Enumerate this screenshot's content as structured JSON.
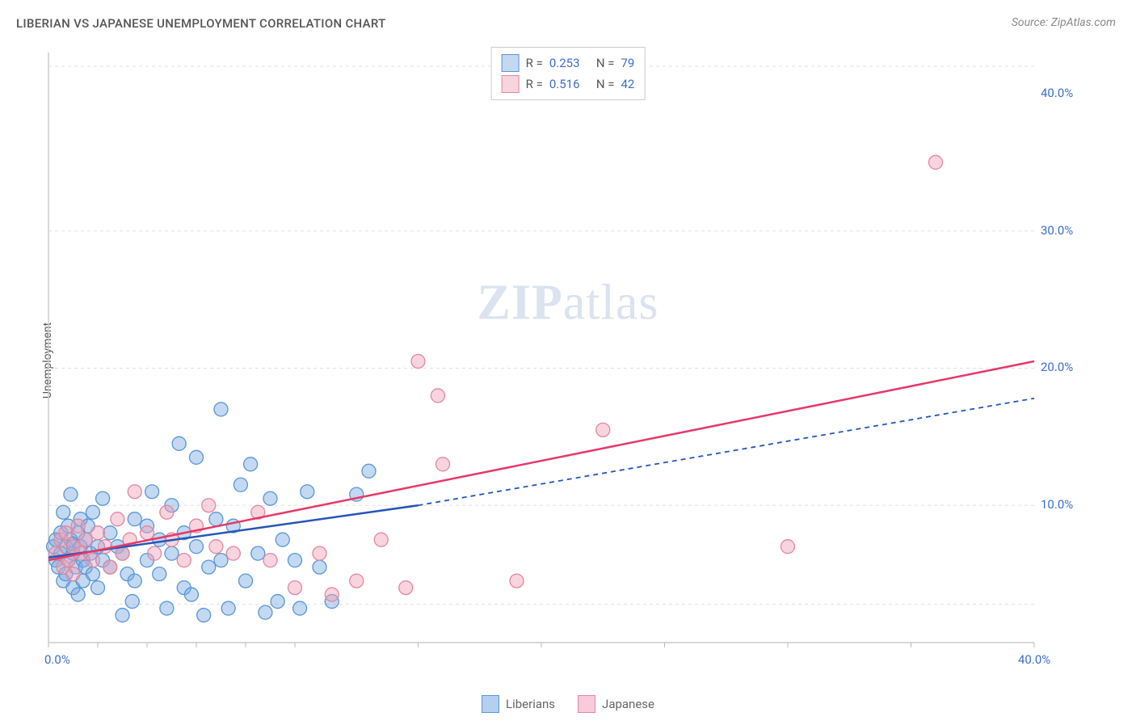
{
  "chart": {
    "type": "scatter",
    "title": "LIBERIAN VS JAPANESE UNEMPLOYMENT CORRELATION CHART",
    "source_label": "Source: ZipAtlas.com",
    "y_axis_label": "Unemployment",
    "background_color": "#ffffff",
    "grid_color": "#e0e0e0",
    "axis_color": "#cccccc",
    "tick_mark_color": "#bbbbbb",
    "xlim": [
      0,
      40
    ],
    "ylim": [
      0,
      43
    ],
    "x_ticks": [
      {
        "value": 0,
        "label": "0.0%"
      },
      {
        "value": 40,
        "label": "40.0%"
      }
    ],
    "x_minor_ticks": [
      2,
      4,
      6,
      8,
      10,
      15,
      20,
      25,
      30,
      35
    ],
    "y_ticks": [
      {
        "value": 10,
        "label": "10.0%"
      },
      {
        "value": 20,
        "label": "20.0%"
      },
      {
        "value": 30,
        "label": "30.0%"
      },
      {
        "value": 40,
        "label": "40.0%"
      }
    ],
    "y_grid_lines": [
      2.8,
      10,
      20,
      30,
      42
    ],
    "tick_label_color": "#3b6fc9",
    "watermark": {
      "zip": "ZIP",
      "atlas": "atlas"
    },
    "series": [
      {
        "name": "Liberians",
        "marker_fill": "rgba(120, 170, 225, 0.45)",
        "marker_stroke": "#5a96d6",
        "marker_radius": 8.5,
        "trend_color": "#2556b8",
        "trend_solid": {
          "x1": 0,
          "y1": 6.2,
          "x2": 15,
          "y2": 10.0
        },
        "trend_dash": {
          "x1": 15,
          "y1": 10.0,
          "x2": 40,
          "y2": 17.8
        },
        "r_value": "0.253",
        "n_value": "79",
        "points": [
          [
            0.2,
            7.0
          ],
          [
            0.3,
            6.0
          ],
          [
            0.3,
            7.5
          ],
          [
            0.4,
            5.5
          ],
          [
            0.5,
            8.0
          ],
          [
            0.5,
            6.5
          ],
          [
            0.6,
            4.5
          ],
          [
            0.6,
            9.5
          ],
          [
            0.7,
            7.0
          ],
          [
            0.7,
            5.0
          ],
          [
            0.8,
            6.0
          ],
          [
            0.8,
            8.5
          ],
          [
            0.9,
            7.5
          ],
          [
            0.9,
            10.8
          ],
          [
            1.0,
            4.0
          ],
          [
            1.0,
            6.5
          ],
          [
            1.0,
            7.2
          ],
          [
            1.1,
            5.5
          ],
          [
            1.2,
            8.0
          ],
          [
            1.2,
            3.5
          ],
          [
            1.3,
            7.0
          ],
          [
            1.3,
            9.0
          ],
          [
            1.4,
            6.0
          ],
          [
            1.4,
            4.5
          ],
          [
            1.5,
            5.5
          ],
          [
            1.5,
            7.5
          ],
          [
            1.6,
            8.5
          ],
          [
            1.7,
            6.5
          ],
          [
            1.8,
            9.5
          ],
          [
            1.8,
            5.0
          ],
          [
            2.0,
            7.0
          ],
          [
            2.0,
            4.0
          ],
          [
            2.2,
            6.0
          ],
          [
            2.2,
            10.5
          ],
          [
            2.5,
            5.5
          ],
          [
            2.5,
            8.0
          ],
          [
            2.8,
            7.0
          ],
          [
            3.0,
            2.0
          ],
          [
            3.0,
            6.5
          ],
          [
            3.2,
            5.0
          ],
          [
            3.4,
            3.0
          ],
          [
            3.5,
            9.0
          ],
          [
            3.5,
            4.5
          ],
          [
            4.0,
            6.0
          ],
          [
            4.0,
            8.5
          ],
          [
            4.2,
            11.0
          ],
          [
            4.5,
            7.5
          ],
          [
            4.5,
            5.0
          ],
          [
            4.8,
            2.5
          ],
          [
            5.0,
            10.0
          ],
          [
            5.0,
            6.5
          ],
          [
            5.3,
            14.5
          ],
          [
            5.5,
            4.0
          ],
          [
            5.5,
            8.0
          ],
          [
            5.8,
            3.5
          ],
          [
            6.0,
            7.0
          ],
          [
            6.0,
            13.5
          ],
          [
            6.3,
            2.0
          ],
          [
            6.5,
            5.5
          ],
          [
            6.8,
            9.0
          ],
          [
            7.0,
            17.0
          ],
          [
            7.0,
            6.0
          ],
          [
            7.3,
            2.5
          ],
          [
            7.5,
            8.5
          ],
          [
            7.8,
            11.5
          ],
          [
            8.0,
            4.5
          ],
          [
            8.2,
            13.0
          ],
          [
            8.5,
            6.5
          ],
          [
            9.0,
            10.5
          ],
          [
            9.3,
            3.0
          ],
          [
            9.5,
            7.5
          ],
          [
            10.0,
            6.0
          ],
          [
            10.5,
            11.0
          ],
          [
            11.0,
            5.5
          ],
          [
            12.5,
            10.8
          ],
          [
            13.0,
            12.5
          ],
          [
            10.2,
            2.5
          ],
          [
            11.5,
            3.0
          ],
          [
            8.8,
            2.2
          ]
        ]
      },
      {
        "name": "Japanese",
        "marker_fill": "rgba(240, 160, 185, 0.45)",
        "marker_stroke": "#e3879f",
        "marker_radius": 8.5,
        "trend_color": "#e63968",
        "trend_solid": {
          "x1": 0,
          "y1": 6.0,
          "x2": 40,
          "y2": 20.5
        },
        "trend_dash": null,
        "r_value": "0.516",
        "n_value": "42",
        "points": [
          [
            0.3,
            6.5
          ],
          [
            0.5,
            7.5
          ],
          [
            0.6,
            5.5
          ],
          [
            0.7,
            8.0
          ],
          [
            0.8,
            6.0
          ],
          [
            1.0,
            7.0
          ],
          [
            1.0,
            5.0
          ],
          [
            1.2,
            8.5
          ],
          [
            1.3,
            6.5
          ],
          [
            1.5,
            7.5
          ],
          [
            1.8,
            6.0
          ],
          [
            2.0,
            8.0
          ],
          [
            2.3,
            7.0
          ],
          [
            2.5,
            5.5
          ],
          [
            2.8,
            9.0
          ],
          [
            3.0,
            6.5
          ],
          [
            3.3,
            7.5
          ],
          [
            3.5,
            11.0
          ],
          [
            4.0,
            8.0
          ],
          [
            4.3,
            6.5
          ],
          [
            4.8,
            9.5
          ],
          [
            5.0,
            7.5
          ],
          [
            5.5,
            6.0
          ],
          [
            6.0,
            8.5
          ],
          [
            6.5,
            10.0
          ],
          [
            6.8,
            7.0
          ],
          [
            7.5,
            6.5
          ],
          [
            8.5,
            9.5
          ],
          [
            9.0,
            6.0
          ],
          [
            10.0,
            4.0
          ],
          [
            11.0,
            6.5
          ],
          [
            12.5,
            4.5
          ],
          [
            13.5,
            7.5
          ],
          [
            14.5,
            4.0
          ],
          [
            15.8,
            18.0
          ],
          [
            16.0,
            13.0
          ],
          [
            15.0,
            20.5
          ],
          [
            19.0,
            4.5
          ],
          [
            22.5,
            15.5
          ],
          [
            30.0,
            7.0
          ],
          [
            36.0,
            35.0
          ],
          [
            11.5,
            3.5
          ]
        ]
      }
    ],
    "legend_top": {
      "r_label": "R =",
      "n_label": "N =",
      "value_color": "#3b6fc9",
      "label_color": "#555"
    },
    "legend_bottom_items": [
      {
        "label": "Liberians",
        "fill": "rgba(120, 170, 225, 0.55)",
        "stroke": "#5a96d6"
      },
      {
        "label": "Japanese",
        "fill": "rgba(240, 160, 185, 0.55)",
        "stroke": "#e3879f"
      }
    ]
  }
}
